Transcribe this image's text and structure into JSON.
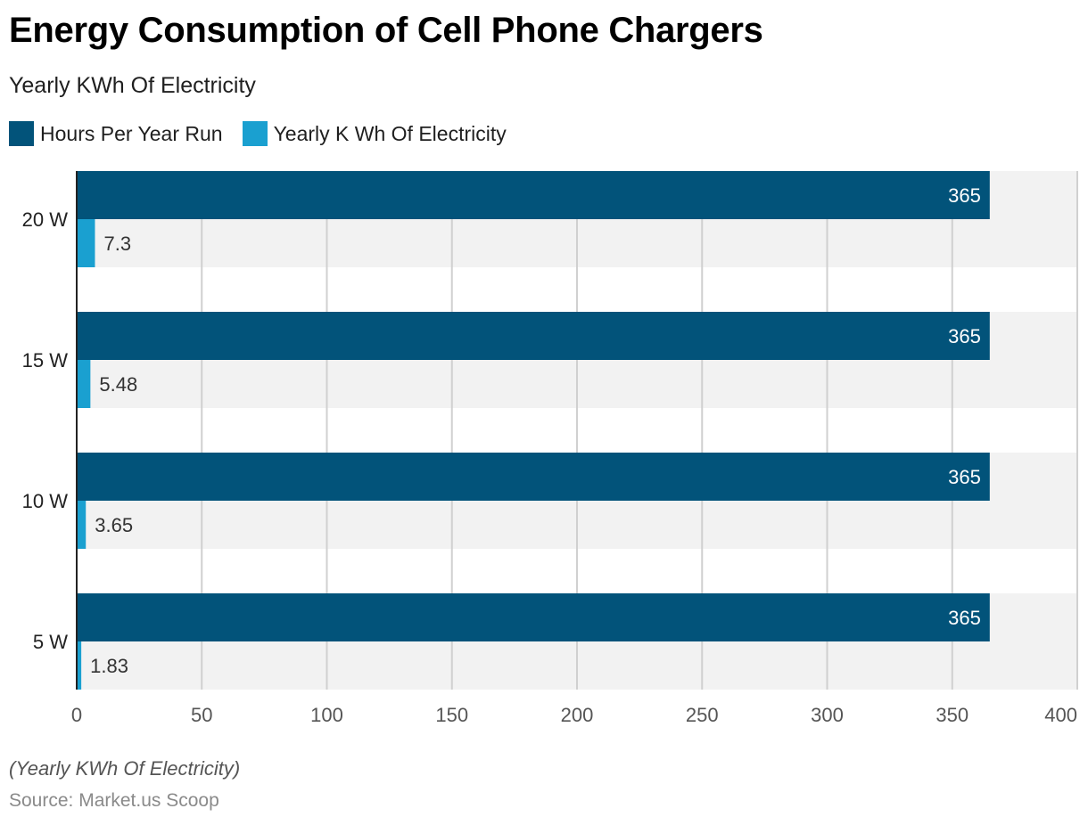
{
  "chart_data": {
    "type": "bar",
    "orientation": "horizontal",
    "title": "Energy Consumption of Cell Phone Chargers",
    "subtitle": "Yearly KWh Of Electricity",
    "categories": [
      "20 W",
      "15 W",
      "10 W",
      "5 W"
    ],
    "series": [
      {
        "name": "Hours Per Year Run",
        "color": "#02537a",
        "values": [
          365,
          365,
          365,
          365
        ],
        "labels": [
          "365",
          "365",
          "365",
          "365"
        ]
      },
      {
        "name": "Yearly K Wh Of Electricity",
        "color": "#1aa0d0",
        "values": [
          7.3,
          5.48,
          3.65,
          1.83
        ],
        "labels": [
          "7.3",
          "5.48",
          "3.65",
          "1.83"
        ]
      }
    ],
    "xlim": [
      0,
      400
    ],
    "xticks": [
      0,
      50,
      100,
      150,
      200,
      250,
      300,
      350,
      400
    ],
    "xtick_labels": [
      "0",
      "50",
      "100",
      "150",
      "200",
      "250",
      "300",
      "350",
      "400"
    ],
    "xlabel": "",
    "ylabel": "",
    "grid": true,
    "legend_position": "top-left",
    "note": "(Yearly KWh Of Electricity)",
    "source": "Source: Market.us Scoop"
  }
}
